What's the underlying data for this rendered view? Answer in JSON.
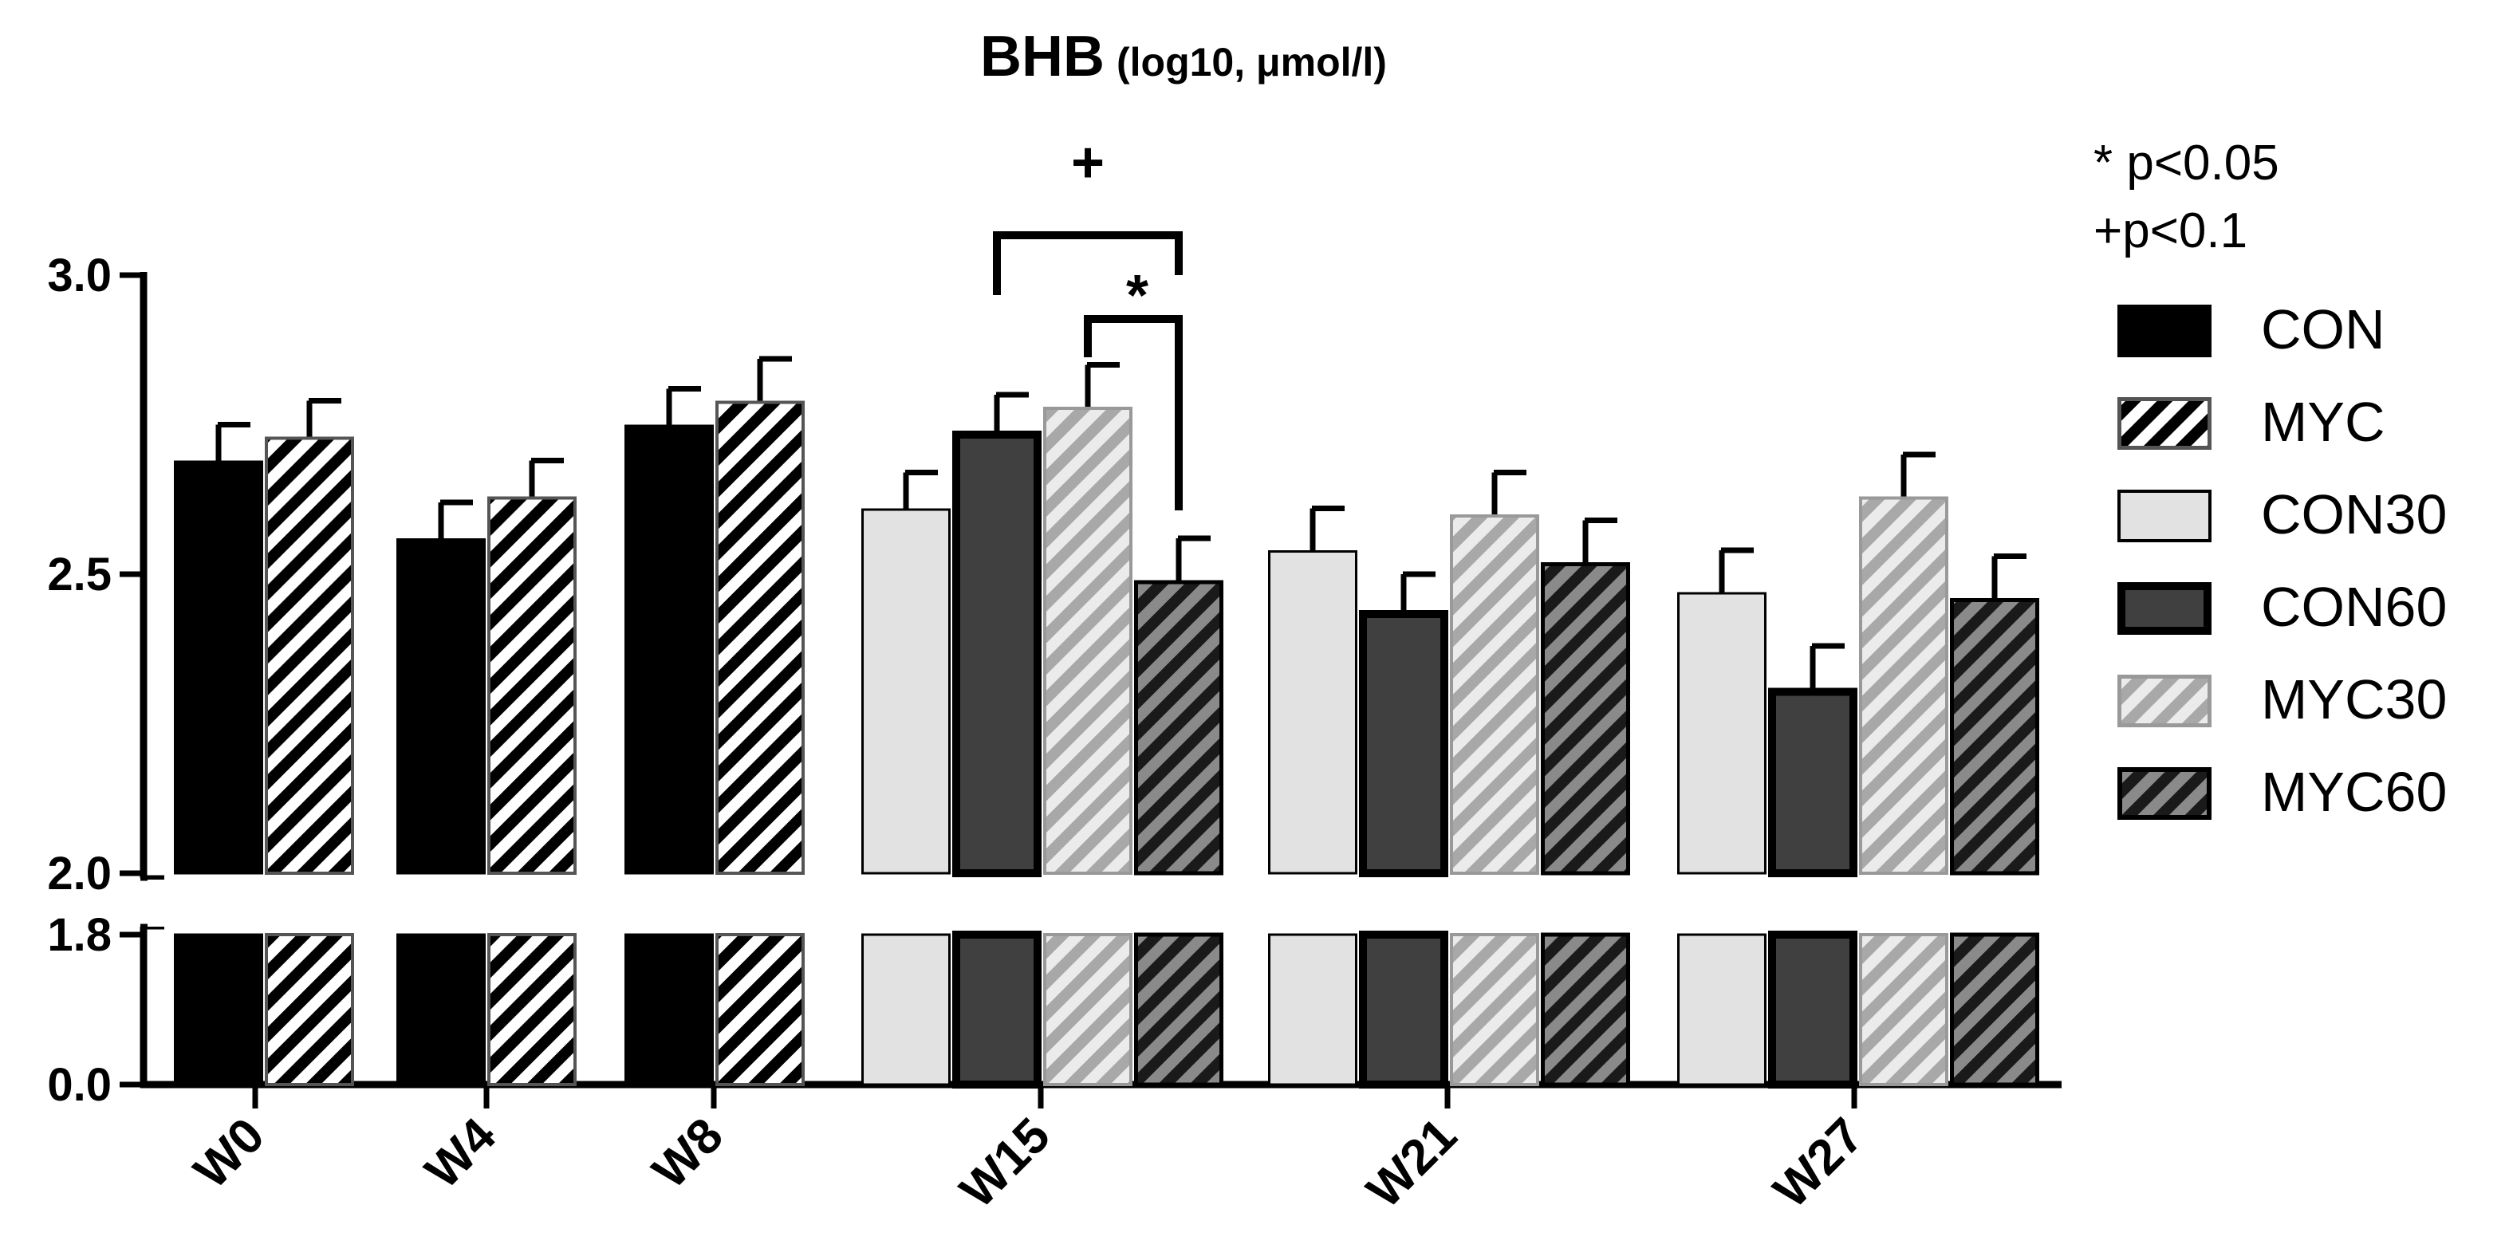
{
  "chart_data": {
    "type": "bar",
    "title": "BHB",
    "title_suffix": "(log10, μmol/l)",
    "y_axis": {
      "broken": true,
      "lower_segment": [
        0.0,
        1.8
      ],
      "upper_segment": [
        2.0,
        3.0
      ],
      "ticks": [
        "0.0",
        "1.8",
        "2.0",
        "2.5",
        "3.0"
      ]
    },
    "categories": [
      "W0",
      "W4",
      "W8",
      "W15",
      "W21",
      "W27"
    ],
    "series": [
      {
        "name": "CON",
        "fill": "#000000",
        "pattern": "solid"
      },
      {
        "name": "MYC",
        "fill": "#ffffff",
        "pattern": "hatch-black"
      },
      {
        "name": "CON30",
        "fill": "#e0e0e0",
        "pattern": "solid"
      },
      {
        "name": "CON60",
        "fill": "#404040",
        "pattern": "solid"
      },
      {
        "name": "MYC30",
        "fill": "#d9d9d9",
        "pattern": "hatch-gray"
      },
      {
        "name": "MYC60",
        "fill": "#6e6e6e",
        "pattern": "hatch-black"
      }
    ],
    "groups": [
      {
        "category": "W0",
        "bars": [
          {
            "series": "CON",
            "value": 2.69,
            "error": 0.06
          },
          {
            "series": "MYC",
            "value": 2.73,
            "error": 0.06
          }
        ]
      },
      {
        "category": "W4",
        "bars": [
          {
            "series": "CON",
            "value": 2.56,
            "error": 0.06
          },
          {
            "series": "MYC",
            "value": 2.63,
            "error": 0.06
          }
        ]
      },
      {
        "category": "W8",
        "bars": [
          {
            "series": "CON",
            "value": 2.75,
            "error": 0.06
          },
          {
            "series": "MYC",
            "value": 2.79,
            "error": 0.07
          }
        ]
      },
      {
        "category": "W15",
        "bars": [
          {
            "series": "CON30",
            "value": 2.61,
            "error": 0.06
          },
          {
            "series": "CON60",
            "value": 2.74,
            "error": 0.06
          },
          {
            "series": "MYC30",
            "value": 2.78,
            "error": 0.07
          },
          {
            "series": "MYC60",
            "value": 2.49,
            "error": 0.07
          }
        ]
      },
      {
        "category": "W21",
        "bars": [
          {
            "series": "CON30",
            "value": 2.54,
            "error": 0.07
          },
          {
            "series": "CON60",
            "value": 2.44,
            "error": 0.06
          },
          {
            "series": "MYC30",
            "value": 2.6,
            "error": 0.07
          },
          {
            "series": "MYC60",
            "value": 2.52,
            "error": 0.07
          }
        ]
      },
      {
        "category": "W27",
        "bars": [
          {
            "series": "CON30",
            "value": 2.47,
            "error": 0.07
          },
          {
            "series": "CON60",
            "value": 2.31,
            "error": 0.07
          },
          {
            "series": "MYC30",
            "value": 2.63,
            "error": 0.07
          },
          {
            "series": "MYC60",
            "value": 2.46,
            "error": 0.07
          }
        ]
      }
    ],
    "annotations": [
      {
        "label": "+",
        "category": "W15",
        "from_series": "CON60",
        "to_series": "MYC60"
      },
      {
        "label": "*",
        "category": "W15",
        "from_series": "MYC30",
        "to_series": "MYC60"
      }
    ],
    "significance_key": [
      "* p<0.05",
      "+p<0.1"
    ],
    "legend_position": "right"
  }
}
